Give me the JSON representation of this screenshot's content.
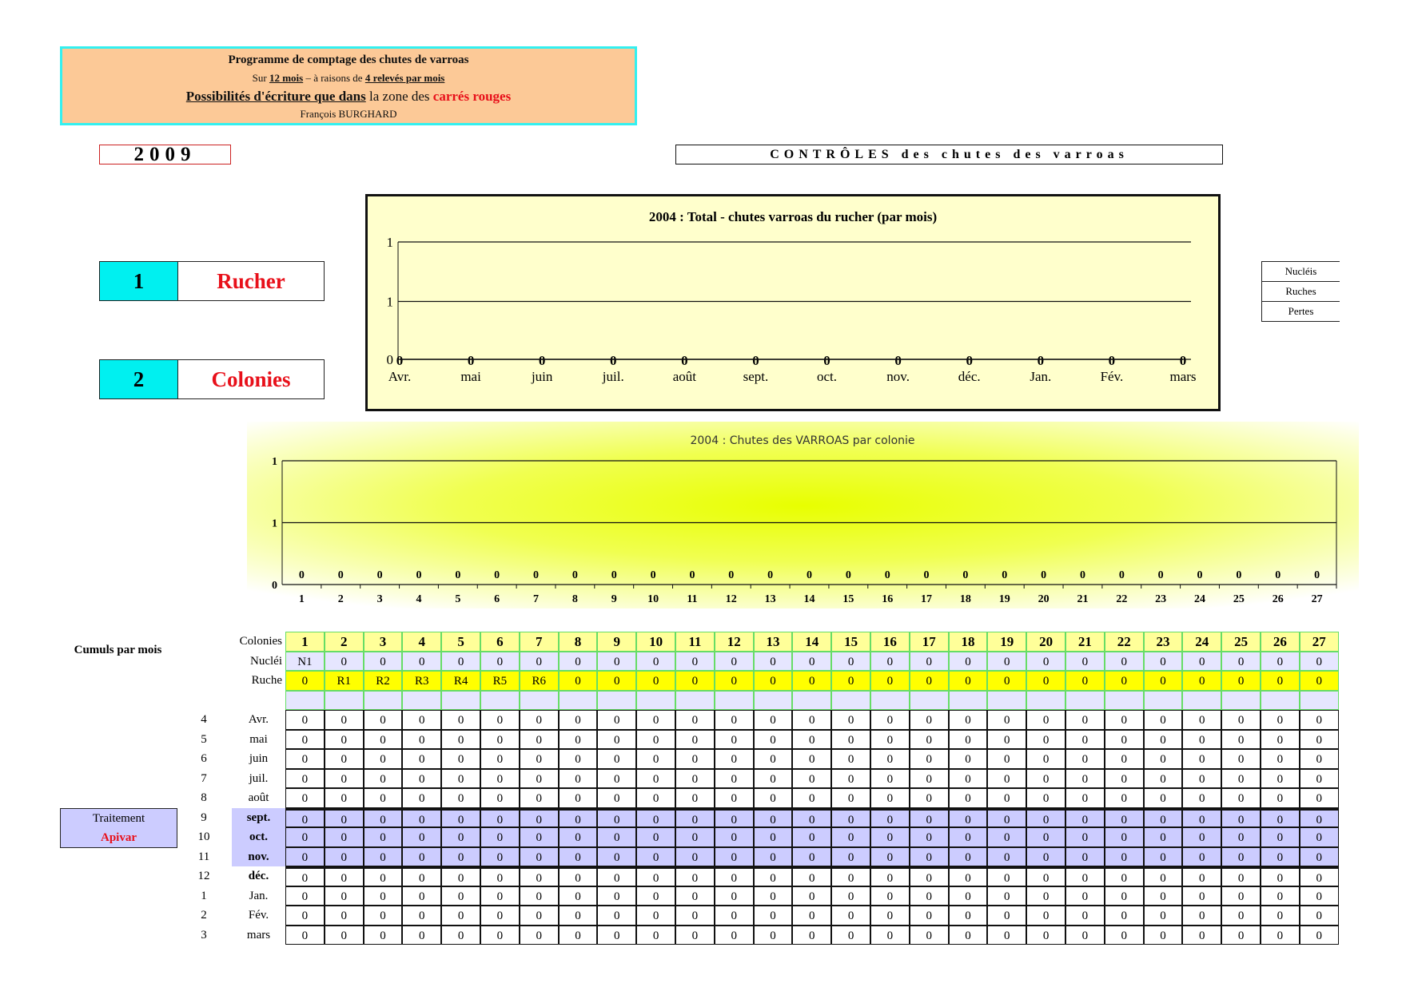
{
  "info": {
    "title": "Programme de comptage des chutes de varroas",
    "line2_a": "Sur ",
    "line2_b": "12 mois",
    "line2_c": " – à raisons de ",
    "line2_d": "4 relevés par mois",
    "line3_a": "Possibilités d'écriture que dans",
    "line3_b": " la zone des ",
    "line3_c": "carrés rouges",
    "author": "François BURGHARD"
  },
  "year": "2009",
  "controls_title": "CONTRÔLES des chutes des varroas",
  "nav": [
    {
      "num": "1",
      "label": "Rucher"
    },
    {
      "num": "2",
      "label": "Colonies"
    }
  ],
  "legend": [
    "Nucléis",
    "Ruches",
    "Pertes"
  ],
  "colors": {
    "cyan": "#00f0f0",
    "red": "#e8101a",
    "header_green": "#ffff99",
    "yellow": "#ffff00",
    "lavender": "#e6e6ff",
    "treatment": "#ccccff"
  },
  "chart_data": [
    {
      "type": "line",
      "title": "2004  :  Total - chutes varroas du rucher (par mois)",
      "categories": [
        "Avr.",
        "mai",
        "juin",
        "juil.",
        "août",
        "sept.",
        "oct.",
        "nov.",
        "déc.",
        "Jan.",
        "Fév.",
        "mars"
      ],
      "values": [
        0,
        0,
        0,
        0,
        0,
        0,
        0,
        0,
        0,
        0,
        0,
        0
      ],
      "ytick_labels": [
        "0",
        "1",
        "1"
      ],
      "ylim": [
        0,
        1
      ],
      "grid": true
    },
    {
      "type": "bar",
      "title": "2004 : Chutes des VARROAS par colonie",
      "categories": [
        "1",
        "2",
        "3",
        "4",
        "5",
        "6",
        "7",
        "8",
        "9",
        "10",
        "11",
        "12",
        "13",
        "14",
        "15",
        "16",
        "17",
        "18",
        "19",
        "20",
        "21",
        "22",
        "23",
        "24",
        "25",
        "26",
        "27"
      ],
      "values": [
        0,
        0,
        0,
        0,
        0,
        0,
        0,
        0,
        0,
        0,
        0,
        0,
        0,
        0,
        0,
        0,
        0,
        0,
        0,
        0,
        0,
        0,
        0,
        0,
        0,
        0,
        0
      ],
      "ytick_labels": [
        "0",
        "1",
        "1"
      ],
      "ylim": [
        0,
        1
      ],
      "grid": true
    }
  ],
  "table": {
    "cumuls_label": "Cumuls par mois",
    "treatment": {
      "label": "Traitement",
      "product": "Apivar"
    },
    "colonies_label": "Colonies",
    "nuclei_label": "Nucléi",
    "ruche_label": "Ruche",
    "colonies": [
      "1",
      "2",
      "3",
      "4",
      "5",
      "6",
      "7",
      "8",
      "9",
      "10",
      "11",
      "12",
      "13",
      "14",
      "15",
      "16",
      "17",
      "18",
      "19",
      "20",
      "21",
      "22",
      "23",
      "24",
      "25",
      "26",
      "27"
    ],
    "nuclei": [
      "N1",
      "0",
      "0",
      "0",
      "0",
      "0",
      "0",
      "0",
      "0",
      "0",
      "0",
      "0",
      "0",
      "0",
      "0",
      "0",
      "0",
      "0",
      "0",
      "0",
      "0",
      "0",
      "0",
      "0",
      "0",
      "0",
      "0"
    ],
    "ruche": [
      "0",
      "R1",
      "R2",
      "R3",
      "R4",
      "R5",
      "R6",
      "0",
      "0",
      "0",
      "0",
      "0",
      "0",
      "0",
      "0",
      "0",
      "0",
      "0",
      "0",
      "0",
      "0",
      "0",
      "0",
      "0",
      "0",
      "0",
      "0"
    ],
    "months": [
      {
        "num": "4",
        "label": "Avr.",
        "bold": false,
        "treated": false
      },
      {
        "num": "5",
        "label": "mai",
        "bold": false,
        "treated": false
      },
      {
        "num": "6",
        "label": "juin",
        "bold": false,
        "treated": false
      },
      {
        "num": "7",
        "label": "juil.",
        "bold": false,
        "treated": false
      },
      {
        "num": "8",
        "label": "août",
        "bold": false,
        "treated": false
      },
      {
        "num": "9",
        "label": "sept.",
        "bold": true,
        "treated": true
      },
      {
        "num": "10",
        "label": "oct.",
        "bold": true,
        "treated": true
      },
      {
        "num": "11",
        "label": "nov.",
        "bold": true,
        "treated": true
      },
      {
        "num": "12",
        "label": "déc.",
        "bold": true,
        "treated": false
      },
      {
        "num": "1",
        "label": "Jan.",
        "bold": false,
        "treated": false
      },
      {
        "num": "2",
        "label": "Fév.",
        "bold": false,
        "treated": false
      },
      {
        "num": "3",
        "label": "mars",
        "bold": false,
        "treated": false
      }
    ],
    "values": [
      [
        0,
        0,
        0,
        0,
        0,
        0,
        0,
        0,
        0,
        0,
        0,
        0,
        0,
        0,
        0,
        0,
        0,
        0,
        0,
        0,
        0,
        0,
        0,
        0,
        0,
        0,
        0
      ],
      [
        0,
        0,
        0,
        0,
        0,
        0,
        0,
        0,
        0,
        0,
        0,
        0,
        0,
        0,
        0,
        0,
        0,
        0,
        0,
        0,
        0,
        0,
        0,
        0,
        0,
        0,
        0
      ],
      [
        0,
        0,
        0,
        0,
        0,
        0,
        0,
        0,
        0,
        0,
        0,
        0,
        0,
        0,
        0,
        0,
        0,
        0,
        0,
        0,
        0,
        0,
        0,
        0,
        0,
        0,
        0
      ],
      [
        0,
        0,
        0,
        0,
        0,
        0,
        0,
        0,
        0,
        0,
        0,
        0,
        0,
        0,
        0,
        0,
        0,
        0,
        0,
        0,
        0,
        0,
        0,
        0,
        0,
        0,
        0
      ],
      [
        0,
        0,
        0,
        0,
        0,
        0,
        0,
        0,
        0,
        0,
        0,
        0,
        0,
        0,
        0,
        0,
        0,
        0,
        0,
        0,
        0,
        0,
        0,
        0,
        0,
        0,
        0
      ],
      [
        0,
        0,
        0,
        0,
        0,
        0,
        0,
        0,
        0,
        0,
        0,
        0,
        0,
        0,
        0,
        0,
        0,
        0,
        0,
        0,
        0,
        0,
        0,
        0,
        0,
        0,
        0
      ],
      [
        0,
        0,
        0,
        0,
        0,
        0,
        0,
        0,
        0,
        0,
        0,
        0,
        0,
        0,
        0,
        0,
        0,
        0,
        0,
        0,
        0,
        0,
        0,
        0,
        0,
        0,
        0
      ],
      [
        0,
        0,
        0,
        0,
        0,
        0,
        0,
        0,
        0,
        0,
        0,
        0,
        0,
        0,
        0,
        0,
        0,
        0,
        0,
        0,
        0,
        0,
        0,
        0,
        0,
        0,
        0
      ],
      [
        0,
        0,
        0,
        0,
        0,
        0,
        0,
        0,
        0,
        0,
        0,
        0,
        0,
        0,
        0,
        0,
        0,
        0,
        0,
        0,
        0,
        0,
        0,
        0,
        0,
        0,
        0
      ],
      [
        0,
        0,
        0,
        0,
        0,
        0,
        0,
        0,
        0,
        0,
        0,
        0,
        0,
        0,
        0,
        0,
        0,
        0,
        0,
        0,
        0,
        0,
        0,
        0,
        0,
        0,
        0
      ],
      [
        0,
        0,
        0,
        0,
        0,
        0,
        0,
        0,
        0,
        0,
        0,
        0,
        0,
        0,
        0,
        0,
        0,
        0,
        0,
        0,
        0,
        0,
        0,
        0,
        0,
        0,
        0
      ],
      [
        0,
        0,
        0,
        0,
        0,
        0,
        0,
        0,
        0,
        0,
        0,
        0,
        0,
        0,
        0,
        0,
        0,
        0,
        0,
        0,
        0,
        0,
        0,
        0,
        0,
        0,
        0
      ]
    ]
  }
}
